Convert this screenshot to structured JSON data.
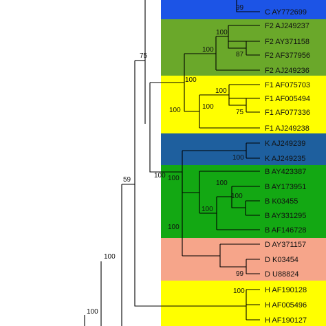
{
  "tree": {
    "clades": [
      {
        "genotype": "C",
        "color": "#1c54e6"
      },
      {
        "genotype": "F2",
        "color": "#6aa82a"
      },
      {
        "genotype": "F1",
        "color": "#ffff00"
      },
      {
        "genotype": "K",
        "color": "#1e5f9e"
      },
      {
        "genotype": "B",
        "color": "#13a813"
      },
      {
        "genotype": "D",
        "color": "#f6a58a"
      },
      {
        "genotype": "H",
        "color": "#ffff00"
      }
    ],
    "leaves": [
      {
        "label": "C AY772699"
      },
      {
        "label": "F2 AJ249237"
      },
      {
        "label": "F2 AY371158"
      },
      {
        "label": "F2 AF377956"
      },
      {
        "label": "F2 AJ249236"
      },
      {
        "label": "F1 AF075703"
      },
      {
        "label": "F1 AF005494"
      },
      {
        "label": "F1 AF077336"
      },
      {
        "label": "F1 AJ249238"
      },
      {
        "label": "K AJ249239"
      },
      {
        "label": "K AJ249235"
      },
      {
        "label": "B AY423387"
      },
      {
        "label": "B AY173951"
      },
      {
        "label": "B K03455"
      },
      {
        "label": "B AY331295"
      },
      {
        "label": "B AF146728"
      },
      {
        "label": "D AY371157"
      },
      {
        "label": "D K03454"
      },
      {
        "label": "D U88824"
      },
      {
        "label": "H AF190128"
      },
      {
        "label": "H AF005496"
      },
      {
        "label": "H AF190127"
      }
    ],
    "bootstrap_values": [
      {
        "value": "99"
      },
      {
        "value": "100"
      },
      {
        "value": "100"
      },
      {
        "value": "87"
      },
      {
        "value": "75"
      },
      {
        "value": "100"
      },
      {
        "value": "100"
      },
      {
        "value": "75"
      },
      {
        "value": "100"
      },
      {
        "value": "100"
      },
      {
        "value": "100"
      },
      {
        "value": "100"
      },
      {
        "value": "100"
      },
      {
        "value": "100"
      },
      {
        "value": "100"
      },
      {
        "value": "100"
      },
      {
        "value": "99"
      },
      {
        "value": "59"
      },
      {
        "value": "100"
      },
      {
        "value": "100"
      },
      {
        "value": "100"
      },
      {
        "value": "100"
      }
    ],
    "line_color": "#000000"
  }
}
